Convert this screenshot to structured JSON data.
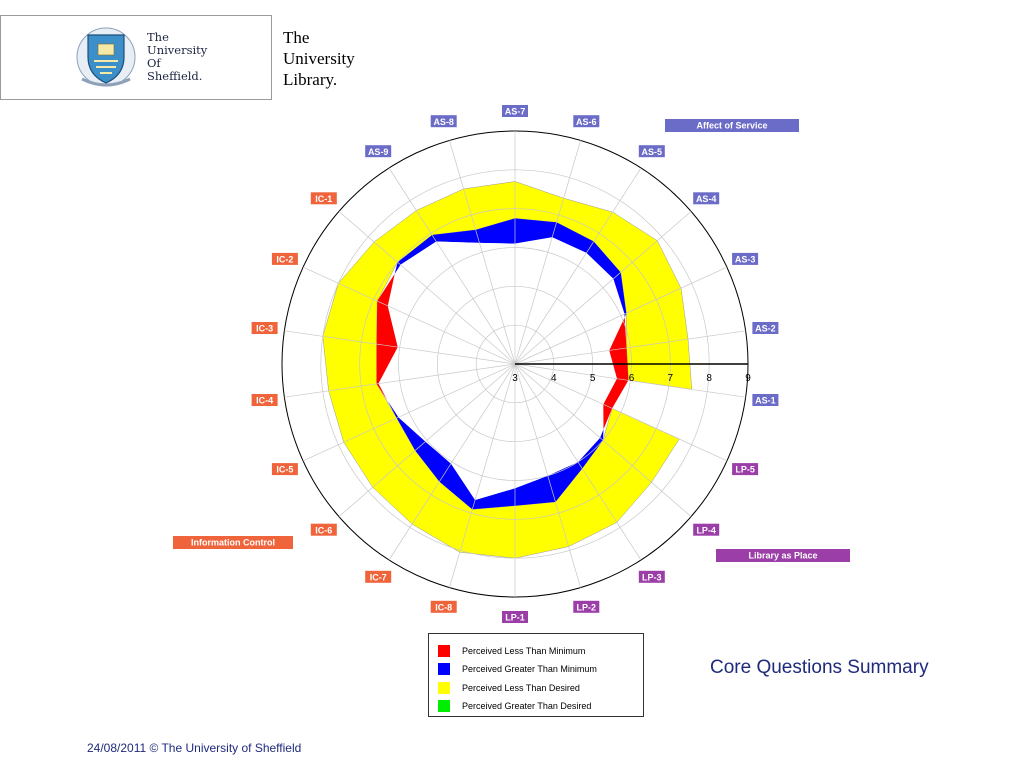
{
  "header": {
    "logo_lines": [
      "The",
      "University",
      "Of",
      "Sheffield."
    ],
    "library_lines": [
      "The",
      "University",
      "Library."
    ]
  },
  "chart_data": {
    "type": "radar",
    "r_axis": {
      "min": 3,
      "max": 9,
      "ticks": [
        "3",
        "4",
        "5",
        "6",
        "7",
        "8",
        "9"
      ]
    },
    "categories": [
      "AS-1",
      "AS-2",
      "AS-3",
      "AS-4",
      "AS-5",
      "AS-6",
      "AS-7",
      "AS-8",
      "AS-9",
      "IC-1",
      "IC-2",
      "IC-3",
      "IC-4",
      "IC-5",
      "IC-6",
      "IC-7",
      "IC-8",
      "LP-1",
      "LP-2",
      "LP-3",
      "LP-4",
      "LP-5"
    ],
    "category_groups": [
      {
        "name": "Affect of Service",
        "items": [
          "AS-1",
          "AS-2",
          "AS-3",
          "AS-4",
          "AS-5",
          "AS-6",
          "AS-7",
          "AS-8",
          "AS-9"
        ],
        "color": "#6b6bc8"
      },
      {
        "name": "Information Control",
        "items": [
          "IC-1",
          "IC-2",
          "IC-3",
          "IC-4",
          "IC-5",
          "IC-6",
          "IC-7",
          "IC-8"
        ],
        "color": "#f0643c"
      },
      {
        "name": "Library as Place",
        "items": [
          "LP-1",
          "LP-2",
          "LP-3",
          "LP-4",
          "LP-5"
        ],
        "color": "#9b3ea8"
      }
    ],
    "series_values": {
      "minimum": [
        5.95,
        5.9,
        6.1,
        6.35,
        6.4,
        6.4,
        6.1,
        6.25,
        6.75,
        6.9,
        6.9,
        6.6,
        6.6,
        6.3,
        6.05,
        6.05,
        6.65,
        6.2,
        6.0,
        6.0,
        5.9,
        5.75
      ],
      "perceived": [
        5.65,
        5.45,
        6.15,
        6.6,
        6.75,
        6.8,
        6.75,
        6.6,
        6.95,
        7.0,
        6.6,
        6.05,
        6.55,
        6.35,
        6.4,
        6.6,
        6.9,
        6.65,
        6.7,
        6.2,
        6.0,
        5.5
      ],
      "desired": [
        7.6,
        7.5,
        7.7,
        7.85,
        7.65,
        7.45,
        7.7,
        7.7,
        7.7,
        7.8,
        8.0,
        8.0,
        7.85,
        7.85,
        7.85,
        7.9,
        8.05,
        8.0,
        7.9,
        7.85,
        7.65,
        7.65
      ]
    },
    "series": [
      {
        "name": "Perceived Less Than Minimum",
        "color": "#ff0000"
      },
      {
        "name": "Perceived Greater Than Minimum",
        "color": "#0000ff"
      },
      {
        "name": "Perceived Less Than Desired",
        "color": "#ffff00"
      },
      {
        "name": "Perceived Greater Than Desired",
        "color": "#00ee00"
      }
    ],
    "grid": true,
    "legend_position": "bottom-center"
  },
  "subtitle": "Core Questions Summary",
  "footer": "24/08/2011  © The University of Sheffield"
}
